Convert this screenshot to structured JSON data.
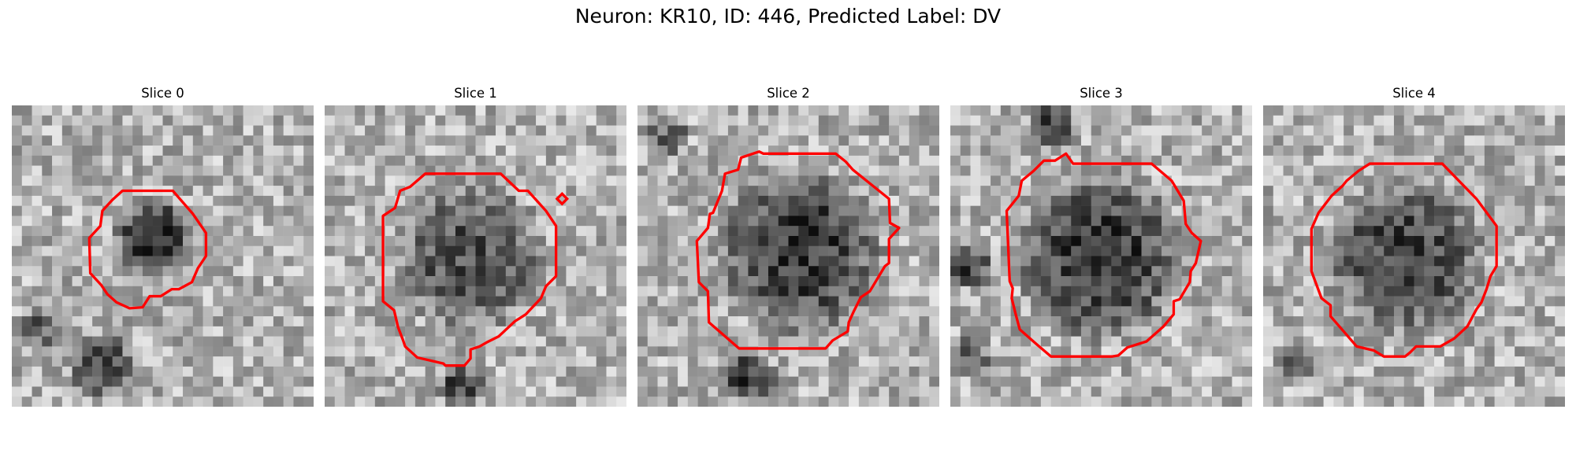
{
  "figure": {
    "title": "Neuron: KR10, ID: 446, Predicted Label: DV",
    "contour_color": "#ff0000"
  },
  "panels": [
    {
      "title": "Slice 0"
    },
    {
      "title": "Slice 1"
    },
    {
      "title": "Slice 2"
    },
    {
      "title": "Slice 3"
    },
    {
      "title": "Slice 4"
    }
  ]
}
